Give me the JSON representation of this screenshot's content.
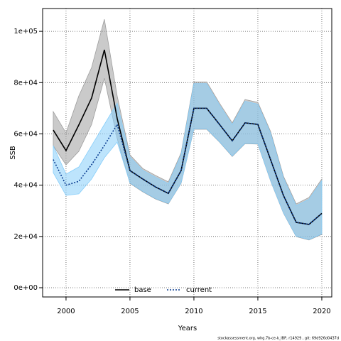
{
  "chart_data": {
    "type": "line",
    "x_label": "Years",
    "y_label": "SSB",
    "footnote": "stockassessment.org, whg.7b-ce-k_IBP, r14929 , git: 69d926d0437d",
    "x": [
      1999,
      2000,
      2001,
      2002,
      2003,
      2004,
      2005,
      2006,
      2007,
      2008,
      2009,
      2010,
      2011,
      2012,
      2013,
      2014,
      2015,
      2016,
      2017,
      2018,
      2019,
      2020
    ],
    "series": [
      {
        "name": "base",
        "color": "#000000",
        "band_color": "#9e9e9e",
        "dash": false,
        "values": [
          61500,
          53500,
          63500,
          74000,
          92800,
          66000,
          45700,
          42400,
          39300,
          36800,
          45700,
          70000,
          70000,
          63700,
          57300,
          64300,
          63700,
          49900,
          36000,
          25500,
          24700,
          29000
        ],
        "lower": [
          55400,
          47900,
          53200,
          63700,
          81700,
          58200,
          40700,
          37400,
          34600,
          32700,
          40700,
          61800,
          61800,
          56800,
          51200,
          56200,
          56000,
          41600,
          29100,
          19900,
          18600,
          20800
        ],
        "upper": [
          68700,
          60400,
          74800,
          85900,
          104700,
          74800,
          51800,
          46500,
          43800,
          41300,
          52600,
          80300,
          80300,
          72000,
          64300,
          73400,
          72300,
          60900,
          43500,
          32700,
          35200,
          42400
        ]
      },
      {
        "name": "current",
        "color": "#0b3d91",
        "band_color": "#87cefa",
        "dash": true,
        "values": [
          50000,
          40000,
          41500,
          48000,
          55500,
          63700,
          45700,
          42400,
          39300,
          36800,
          45700,
          70000,
          70000,
          63700,
          57300,
          64300,
          63700,
          49900,
          36000,
          25500,
          24700,
          29000
        ],
        "lower": [
          44900,
          36000,
          36600,
          42400,
          50700,
          56800,
          40900,
          37600,
          34800,
          32900,
          40900,
          62000,
          62000,
          57000,
          51400,
          56400,
          56200,
          41800,
          29300,
          20100,
          18800,
          21000
        ],
        "upper": [
          55400,
          44300,
          47100,
          55400,
          63700,
          72000,
          51000,
          45800,
          43100,
          40600,
          51900,
          79600,
          79600,
          71300,
          63600,
          72700,
          71600,
          60200,
          42800,
          32000,
          34500,
          41700
        ]
      }
    ],
    "xlim": [
      1998.17,
      2020.78
    ],
    "ylim": [
      -3600,
      108900
    ],
    "xticks": [
      2000,
      2005,
      2010,
      2015,
      2020
    ],
    "yticks": [
      {
        "value": 0,
        "label": "0e+00"
      },
      {
        "value": 20000,
        "label": "2e+04"
      },
      {
        "value": 40000,
        "label": "4e+04"
      },
      {
        "value": 60000,
        "label": "6e+04"
      },
      {
        "value": 80000,
        "label": "8e+04"
      },
      {
        "value": 100000,
        "label": "1e+05"
      }
    ],
    "grid": true,
    "legend": "bottom"
  }
}
